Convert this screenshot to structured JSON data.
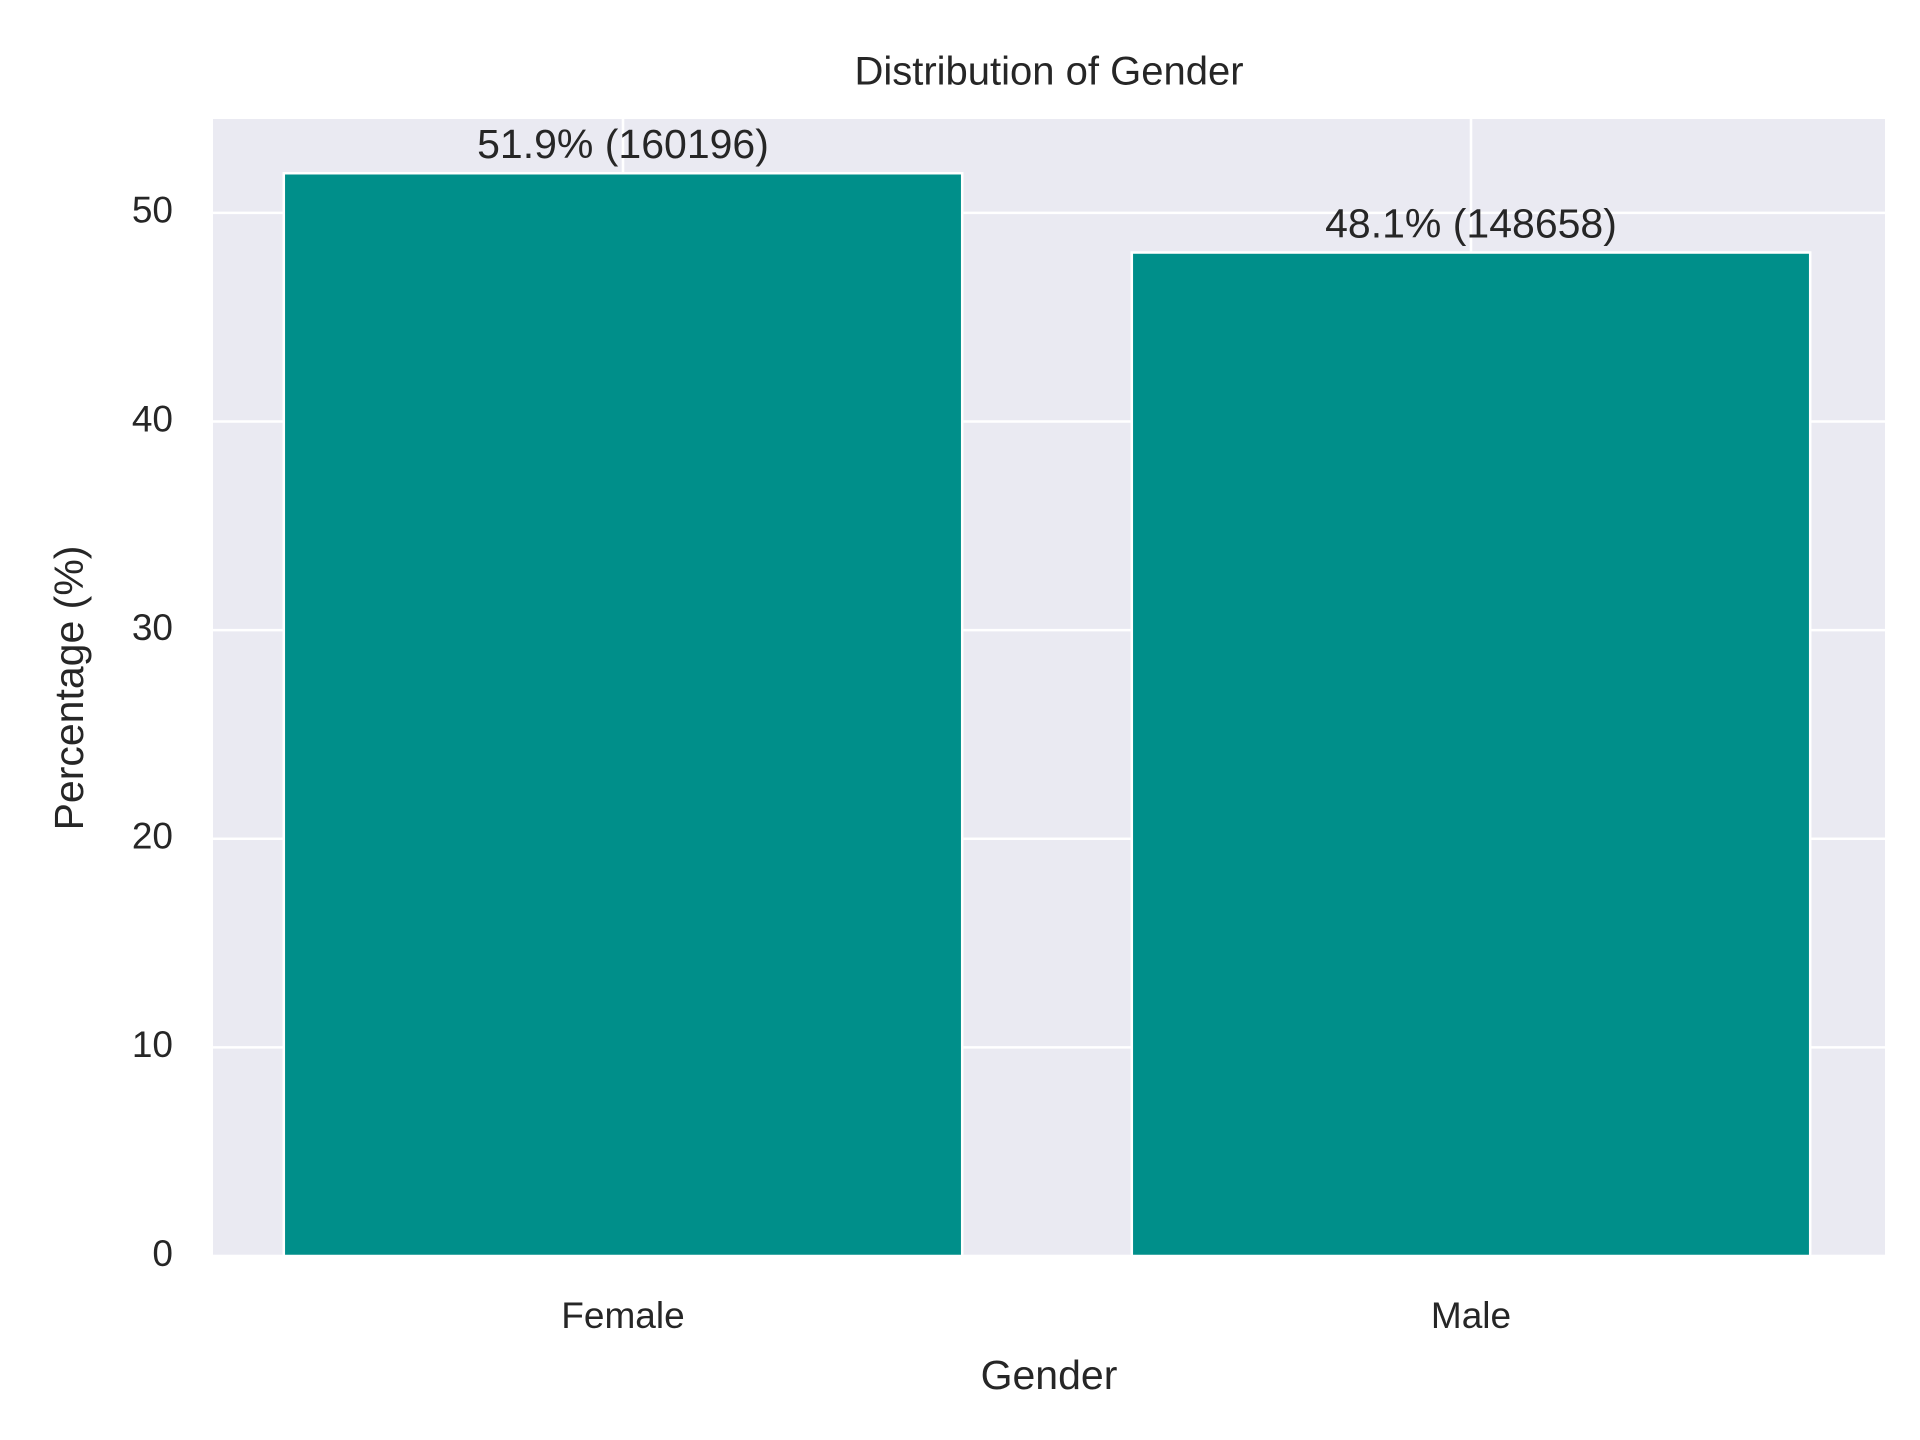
{
  "chart_data": {
    "type": "bar",
    "title": "Distribution of Gender",
    "x_label": "Gender",
    "y_label": "Percentage (%)",
    "categories": [
      "Female",
      "Male"
    ],
    "values": [
      51.9,
      48.1
    ],
    "value_labels": [
      "51.9% (160196)",
      "48.1% (148658)"
    ],
    "color": "#008f8a",
    "ylim": [
      0,
      54.5
    ],
    "yticks": [
      0,
      10,
      20,
      30,
      40,
      50
    ],
    "grid": true
  }
}
